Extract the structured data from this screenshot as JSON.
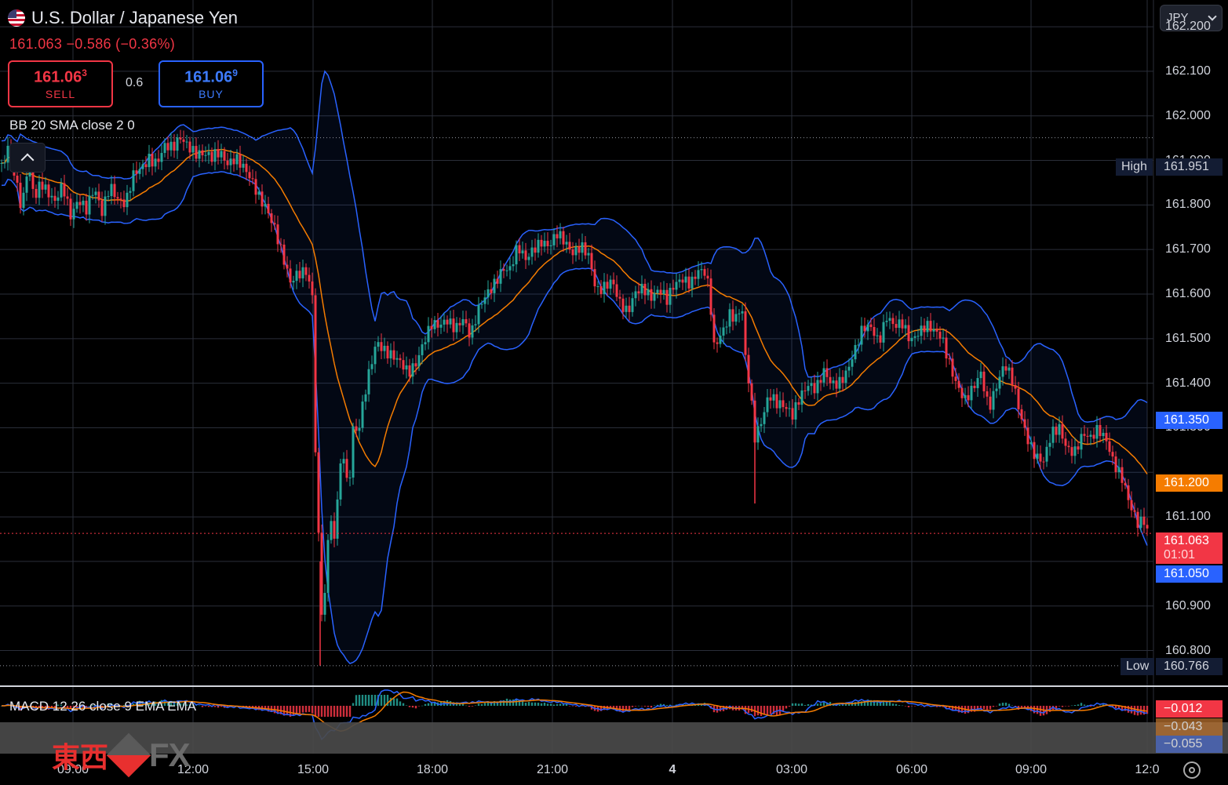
{
  "symbol": {
    "title": "U.S. Dollar / Japanese Yen",
    "last": "161.063",
    "change": "−0.586",
    "change_pct": "(−0.36%)"
  },
  "trade": {
    "sell_main": "161.06",
    "sell_sup": "3",
    "sell_label": "SELL",
    "buy_main": "161.06",
    "buy_sup": "9",
    "buy_label": "BUY",
    "spread": "0.6"
  },
  "indicators": {
    "bb_label": "BB 20 SMA close 2 0",
    "macd_label": "MACD 12 26 close 9 EMA EMA"
  },
  "currency_select": "JPY",
  "price_axis": [
    "162.200",
    "162.100",
    "162.000",
    "161.900",
    "161.800",
    "161.700",
    "161.600",
    "161.500",
    "161.400",
    "161.300",
    "161.100",
    "160.900",
    "160.800"
  ],
  "tags": {
    "high_name": "High",
    "high_value": "161.951",
    "upper_band": "161.350",
    "basis": "161.200",
    "last_price": "161.063",
    "countdown": "01:01",
    "lower_band": "161.050",
    "low_name": "Low",
    "low_value": "160.766",
    "macd_hist": "−0.012",
    "macd_signal": "−0.043",
    "macd_line": "−0.055"
  },
  "time_axis": [
    "09:00",
    "12:00",
    "15:00",
    "18:00",
    "21:00",
    "4",
    "03:00",
    "06:00",
    "09:00",
    "12:0"
  ],
  "logo": {
    "cn": "東西",
    "fx": "FX"
  },
  "colors": {
    "up": "#26a69a",
    "down": "#f23645",
    "band": "#2962ff",
    "basis": "#f57c00",
    "grid": "#2a2e39"
  },
  "chart_data": {
    "type": "candlestick",
    "x_ticks": [
      "09:00",
      "12:00",
      "15:00",
      "18:00",
      "21:00",
      "4",
      "03:00",
      "06:00",
      "09:00",
      "12:0"
    ],
    "ylim": [
      160.72,
      162.26
    ],
    "close_path": [
      [
        0,
        161.88
      ],
      [
        10,
        161.93
      ],
      [
        20,
        161.85
      ],
      [
        28,
        161.78
      ],
      [
        36,
        161.9
      ],
      [
        44,
        161.82
      ],
      [
        52,
        161.86
      ],
      [
        60,
        161.83
      ],
      [
        70,
        161.8
      ],
      [
        80,
        161.84
      ],
      [
        90,
        161.78
      ],
      [
        100,
        161.82
      ],
      [
        110,
        161.79
      ],
      [
        120,
        161.83
      ],
      [
        130,
        161.78
      ],
      [
        140,
        161.85
      ],
      [
        150,
        161.82
      ],
      [
        160,
        161.8
      ],
      [
        170,
        161.86
      ],
      [
        180,
        161.88
      ],
      [
        190,
        161.91
      ],
      [
        200,
        161.9
      ],
      [
        210,
        161.93
      ],
      [
        220,
        161.92
      ],
      [
        230,
        161.95
      ],
      [
        240,
        161.94
      ],
      [
        250,
        161.92
      ],
      [
        260,
        161.91
      ],
      [
        270,
        161.9
      ],
      [
        280,
        161.92
      ],
      [
        290,
        161.9
      ],
      [
        300,
        161.91
      ],
      [
        310,
        161.88
      ],
      [
        320,
        161.85
      ],
      [
        330,
        161.82
      ],
      [
        340,
        161.8
      ],
      [
        350,
        161.75
      ],
      [
        360,
        161.68
      ],
      [
        370,
        161.62
      ],
      [
        380,
        161.65
      ],
      [
        390,
        161.66
      ],
      [
        398,
        161.6
      ],
      [
        402,
        161.25
      ],
      [
        408,
        160.95
      ],
      [
        412,
        160.82
      ],
      [
        416,
        161.0
      ],
      [
        420,
        161.1
      ],
      [
        426,
        161.05
      ],
      [
        432,
        161.2
      ],
      [
        438,
        161.25
      ],
      [
        444,
        161.15
      ],
      [
        450,
        161.3
      ],
      [
        456,
        161.28
      ],
      [
        462,
        161.34
      ],
      [
        468,
        161.4
      ],
      [
        474,
        161.45
      ],
      [
        480,
        161.5
      ],
      [
        490,
        161.48
      ],
      [
        500,
        161.46
      ],
      [
        510,
        161.44
      ],
      [
        520,
        161.42
      ],
      [
        530,
        161.45
      ],
      [
        540,
        161.5
      ],
      [
        550,
        161.53
      ],
      [
        560,
        161.52
      ],
      [
        570,
        161.54
      ],
      [
        580,
        161.53
      ],
      [
        590,
        161.55
      ],
      [
        600,
        161.5
      ],
      [
        610,
        161.56
      ],
      [
        620,
        161.6
      ],
      [
        630,
        161.63
      ],
      [
        640,
        161.66
      ],
      [
        650,
        161.65
      ],
      [
        660,
        161.7
      ],
      [
        670,
        161.68
      ],
      [
        680,
        161.71
      ],
      [
        690,
        161.72
      ],
      [
        700,
        161.7
      ],
      [
        710,
        161.73
      ],
      [
        720,
        161.72
      ],
      [
        730,
        161.7
      ],
      [
        740,
        161.71
      ],
      [
        750,
        161.68
      ],
      [
        760,
        161.6
      ],
      [
        770,
        161.62
      ],
      [
        780,
        161.64
      ],
      [
        790,
        161.58
      ],
      [
        800,
        161.55
      ],
      [
        810,
        161.6
      ],
      [
        820,
        161.62
      ],
      [
        830,
        161.6
      ],
      [
        840,
        161.61
      ],
      [
        850,
        161.58
      ],
      [
        860,
        161.62
      ],
      [
        870,
        161.64
      ],
      [
        880,
        161.63
      ],
      [
        890,
        161.65
      ],
      [
        900,
        161.64
      ],
      [
        905,
        161.58
      ],
      [
        910,
        161.48
      ],
      [
        920,
        161.52
      ],
      [
        930,
        161.56
      ],
      [
        940,
        161.54
      ],
      [
        945,
        161.58
      ],
      [
        950,
        161.45
      ],
      [
        956,
        161.38
      ],
      [
        962,
        161.28
      ],
      [
        970,
        161.32
      ],
      [
        980,
        161.38
      ],
      [
        990,
        161.35
      ],
      [
        1000,
        161.34
      ],
      [
        1010,
        161.33
      ],
      [
        1020,
        161.38
      ],
      [
        1030,
        161.4
      ],
      [
        1040,
        161.38
      ],
      [
        1050,
        161.42
      ],
      [
        1060,
        161.4
      ],
      [
        1070,
        161.41
      ],
      [
        1080,
        161.43
      ],
      [
        1090,
        161.47
      ],
      [
        1100,
        161.52
      ],
      [
        1110,
        161.53
      ],
      [
        1120,
        161.5
      ],
      [
        1130,
        161.55
      ],
      [
        1140,
        161.52
      ],
      [
        1150,
        161.53
      ],
      [
        1160,
        161.5
      ],
      [
        1170,
        161.52
      ],
      [
        1180,
        161.53
      ],
      [
        1190,
        161.51
      ],
      [
        1200,
        161.5
      ],
      [
        1210,
        161.45
      ],
      [
        1220,
        161.4
      ],
      [
        1230,
        161.36
      ],
      [
        1240,
        161.38
      ],
      [
        1250,
        161.42
      ],
      [
        1260,
        161.35
      ],
      [
        1270,
        161.4
      ],
      [
        1280,
        161.44
      ],
      [
        1290,
        161.4
      ],
      [
        1300,
        161.33
      ],
      [
        1310,
        161.28
      ],
      [
        1320,
        161.24
      ],
      [
        1330,
        161.22
      ],
      [
        1340,
        161.28
      ],
      [
        1350,
        161.3
      ],
      [
        1360,
        161.26
      ],
      [
        1370,
        161.25
      ],
      [
        1380,
        161.28
      ],
      [
        1390,
        161.27
      ],
      [
        1400,
        161.3
      ],
      [
        1410,
        161.28
      ],
      [
        1420,
        161.22
      ],
      [
        1430,
        161.18
      ],
      [
        1440,
        161.12
      ],
      [
        1450,
        161.09
      ],
      [
        1458,
        161.1
      ],
      [
        1464,
        161.063
      ]
    ],
    "bollinger": {
      "period": 20,
      "mult": 2,
      "upper_last": 161.35,
      "basis_last": 161.2,
      "lower_last": 161.05
    },
    "high": 161.951,
    "low": 160.766,
    "last": 161.063,
    "macd": {
      "macd": -0.055,
      "signal": -0.043,
      "histogram": -0.012
    }
  }
}
